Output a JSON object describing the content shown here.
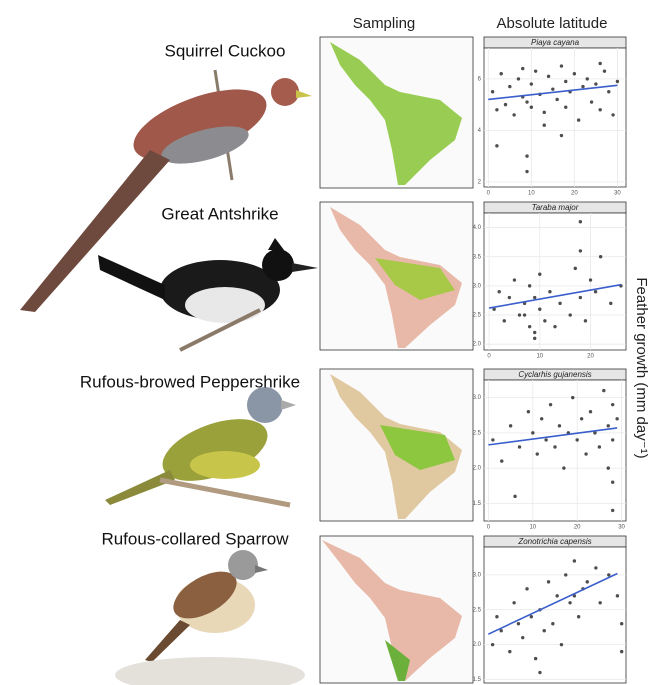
{
  "column_headers": [
    "Sampling",
    "Absolute latitude"
  ],
  "ylabel": "Feather growth (mm day⁻¹)",
  "chart_data": [
    {
      "type": "scatter",
      "label": "Squirrel Cuckoo",
      "title": "Piaya cayana",
      "color": "#222222",
      "fit_color": "#3a5fcd",
      "x": [
        1,
        2,
        3,
        4,
        5,
        6,
        7,
        8,
        8,
        9,
        9,
        10,
        10,
        11,
        12,
        13,
        14,
        15,
        16,
        17,
        18,
        18,
        19,
        20,
        21,
        22,
        23,
        24,
        25,
        26,
        27,
        28,
        29,
        30,
        9,
        17,
        2,
        26,
        13
      ],
      "y": [
        5.5,
        4.8,
        6.2,
        5.0,
        5.7,
        4.6,
        6.0,
        5.3,
        6.4,
        5.1,
        3.0,
        5.8,
        4.9,
        6.3,
        5.4,
        4.7,
        6.1,
        5.6,
        5.2,
        6.5,
        4.9,
        5.9,
        5.5,
        6.2,
        4.4,
        5.7,
        6.0,
        5.1,
        5.8,
        4.8,
        6.3,
        5.5,
        4.6,
        5.9,
        2.4,
        3.8,
        3.4,
        6.6,
        4.2
      ],
      "fit": {
        "x": [
          0,
          30
        ],
        "y": [
          5.2,
          5.75
        ]
      },
      "xlim": [
        -1,
        32
      ],
      "xticks": [
        0,
        10,
        20,
        30
      ],
      "ylim": [
        1.8,
        7.2
      ],
      "yticks": [
        2,
        4,
        6
      ],
      "grid": true
    },
    {
      "type": "scatter",
      "label": "Great Antshrike",
      "title": "Taraba major",
      "color": "#222222",
      "fit_color": "#3a5fcd",
      "x": [
        1,
        2,
        3,
        4,
        5,
        6,
        7,
        8,
        8,
        9,
        9,
        10,
        10,
        11,
        12,
        14,
        16,
        17,
        18,
        18,
        19,
        20,
        21,
        22,
        24,
        26,
        9,
        18,
        7,
        13
      ],
      "y": [
        2.6,
        2.9,
        2.4,
        2.8,
        3.1,
        2.5,
        2.7,
        3.0,
        2.3,
        2.8,
        2.1,
        2.6,
        3.2,
        2.4,
        2.9,
        2.7,
        2.5,
        3.3,
        3.6,
        2.8,
        2.4,
        3.1,
        2.9,
        3.5,
        2.7,
        3.0,
        2.2,
        4.1,
        2.5,
        2.3
      ],
      "fit": {
        "x": [
          0,
          26
        ],
        "y": [
          2.62,
          3.02
        ]
      },
      "xlim": [
        -1,
        27
      ],
      "xticks": [
        0,
        10,
        20
      ],
      "ylim": [
        1.9,
        4.25
      ],
      "yticks": [
        {
          "value": 2,
          "label": "2.0"
        },
        2.5,
        {
          "value": 3,
          "label": "3.0"
        },
        3.5,
        {
          "value": 4,
          "label": "4.0"
        }
      ],
      "grid": true
    },
    {
      "type": "scatter",
      "label": "Rufous-browed Peppershrike",
      "title": "Cyclarhis gujanensis",
      "color": "#222222",
      "fit_color": "#3a5fcd",
      "x": [
        1,
        3,
        5,
        6,
        7,
        9,
        10,
        11,
        12,
        13,
        14,
        15,
        16,
        17,
        18,
        19,
        20,
        21,
        22,
        23,
        24,
        25,
        26,
        27,
        27,
        28,
        28,
        28,
        29,
        28
      ],
      "y": [
        2.4,
        2.1,
        2.6,
        1.6,
        2.3,
        2.8,
        2.5,
        2.2,
        2.7,
        2.4,
        2.9,
        2.3,
        2.6,
        2.0,
        2.5,
        3.0,
        2.4,
        2.7,
        2.2,
        2.8,
        2.5,
        2.3,
        3.1,
        2.6,
        2.0,
        2.9,
        1.4,
        2.4,
        2.7,
        1.8
      ],
      "fit": {
        "x": [
          0,
          29
        ],
        "y": [
          2.33,
          2.57
        ]
      },
      "xlim": [
        -1,
        31
      ],
      "xticks": [
        0,
        10,
        20,
        30
      ],
      "ylim": [
        1.25,
        3.25
      ],
      "yticks": [
        1.5,
        {
          "value": 2,
          "label": "2.0"
        },
        2.5,
        {
          "value": 3,
          "label": "3.0"
        }
      ],
      "grid": true
    },
    {
      "type": "scatter",
      "label": "Rufous-collared Sparrow",
      "title": "Zonotrichia capensis",
      "color": "#222222",
      "fit_color": "#3a5fcd",
      "x": [
        1,
        2,
        3,
        5,
        6,
        7,
        8,
        9,
        10,
        11,
        12,
        13,
        14,
        15,
        16,
        17,
        18,
        19,
        20,
        20,
        21,
        22,
        23,
        25,
        26,
        28,
        30,
        31,
        31,
        12
      ],
      "y": [
        2.0,
        2.4,
        2.2,
        1.9,
        2.6,
        2.3,
        2.1,
        2.8,
        2.4,
        1.8,
        2.5,
        2.2,
        2.9,
        2.3,
        2.7,
        2.0,
        3.0,
        2.6,
        3.2,
        2.7,
        2.4,
        2.8,
        2.9,
        3.1,
        2.6,
        3.0,
        2.7,
        2.3,
        1.9,
        1.6
      ],
      "fit": {
        "x": [
          0,
          30
        ],
        "y": [
          2.15,
          3.02
        ]
      },
      "xlim": [
        -1,
        32
      ],
      "ylim": [
        1.45,
        3.4
      ],
      "yticks": [
        1.5,
        {
          "value": 2,
          "label": "2.0"
        },
        2.5,
        {
          "value": 3,
          "label": "3.0"
        }
      ],
      "grid": true
    }
  ]
}
